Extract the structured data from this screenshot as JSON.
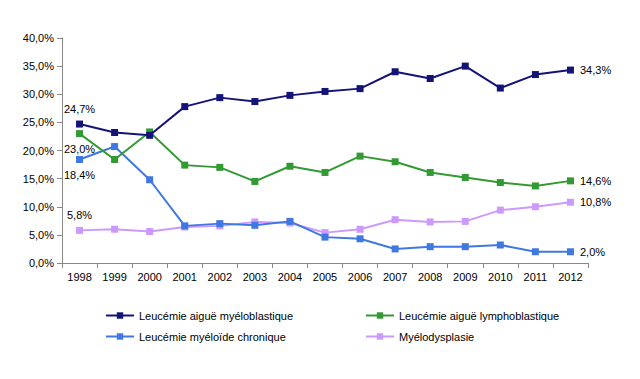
{
  "chart_data": {
    "type": "line",
    "categories": [
      "1998",
      "1999",
      "2000",
      "2001",
      "2002",
      "2003",
      "2004",
      "2005",
      "2006",
      "2007",
      "2008",
      "2009",
      "2010",
      "2011",
      "2012"
    ],
    "series": [
      {
        "name": "Leucémie aiguë myéloblastique",
        "color": "#141478",
        "marker": "square",
        "values": [
          24.7,
          23.2,
          22.7,
          27.8,
          29.4,
          28.7,
          29.8,
          30.5,
          31.0,
          34.0,
          32.8,
          35.0,
          31.1,
          33.5,
          34.3
        ],
        "value_labels": [
          "24,7%",
          null,
          null,
          null,
          null,
          null,
          null,
          null,
          null,
          null,
          null,
          null,
          null,
          null,
          "34,3%"
        ]
      },
      {
        "name": "Leucémie aiguë lymphoblastique",
        "color": "#339933",
        "marker": "square",
        "values": [
          23.0,
          18.4,
          23.3,
          17.4,
          17.0,
          14.5,
          17.2,
          16.1,
          19.0,
          18.0,
          16.1,
          15.2,
          14.3,
          13.7,
          14.6
        ],
        "value_labels": [
          "23,0%",
          null,
          null,
          null,
          null,
          null,
          null,
          null,
          null,
          null,
          null,
          null,
          null,
          null,
          "14,6%"
        ]
      },
      {
        "name": "Leucémie myéloïde chronique",
        "color": "#3f78e0",
        "marker": "square",
        "values": [
          18.4,
          20.7,
          14.8,
          6.6,
          7.0,
          6.7,
          7.4,
          4.6,
          4.3,
          2.5,
          2.9,
          2.9,
          3.2,
          2.0,
          2.0
        ],
        "value_labels": [
          "18,4%",
          null,
          null,
          null,
          null,
          null,
          null,
          null,
          null,
          null,
          null,
          null,
          null,
          null,
          "2,0%"
        ]
      },
      {
        "name": "Myélodysplasie",
        "color": "#cc99ff",
        "marker": "square",
        "values": [
          5.8,
          6.0,
          5.6,
          6.4,
          6.6,
          7.3,
          7.1,
          5.4,
          6.0,
          7.7,
          7.3,
          7.4,
          9.4,
          10.0,
          10.8
        ],
        "value_labels": [
          "5,8%",
          null,
          null,
          null,
          null,
          null,
          null,
          null,
          null,
          null,
          null,
          null,
          null,
          null,
          "10,8%"
        ]
      }
    ],
    "ylim": [
      0,
      40
    ],
    "yticks": [
      {
        "value": 0,
        "label": "0,0%"
      },
      {
        "value": 5,
        "label": "5,0%"
      },
      {
        "value": 10,
        "label": "10,0%"
      },
      {
        "value": 15,
        "label": "15,0%"
      },
      {
        "value": 20,
        "label": "20,0%"
      },
      {
        "value": 25,
        "label": "25,0%"
      },
      {
        "value": 30,
        "label": "30,0%"
      },
      {
        "value": 35,
        "label": "35,0%"
      },
      {
        "value": 40,
        "label": "40,0%"
      }
    ],
    "grid": false,
    "legend": "bottom"
  }
}
